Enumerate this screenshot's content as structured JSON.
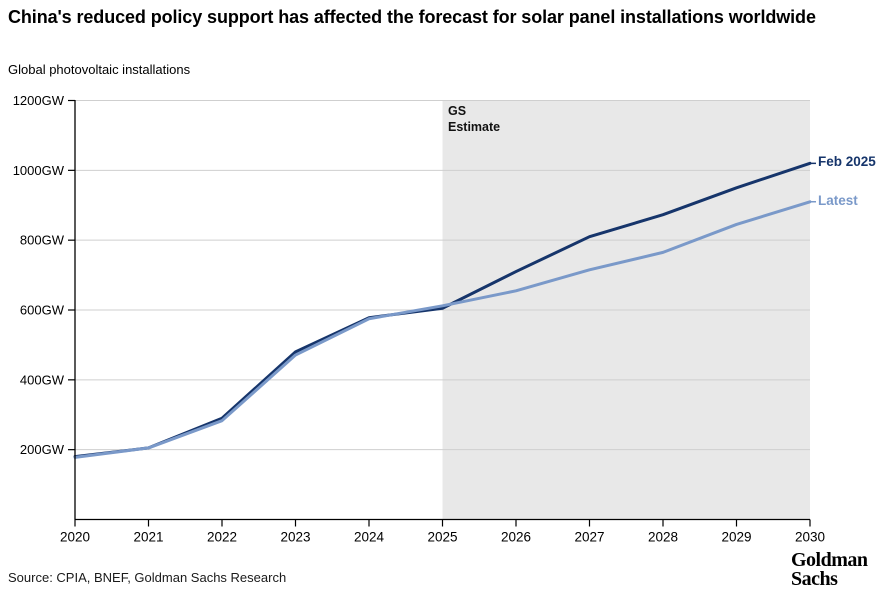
{
  "header": {
    "title": "China's reduced policy support has affected the forecast for solar panel installations worldwide",
    "subtitle": "Global photovoltaic installations"
  },
  "chart_data": {
    "type": "line",
    "title": "Global photovoltaic installations",
    "xlabel": "",
    "ylabel": "",
    "x": [
      2020,
      2021,
      2022,
      2023,
      2024,
      2025,
      2026,
      2027,
      2028,
      2029,
      2030
    ],
    "x_tick_labels": [
      "2020",
      "2021",
      "2022",
      "2023",
      "2024",
      "2025",
      "2026",
      "2027",
      "2028",
      "2029",
      "2030"
    ],
    "series": [
      {
        "name": "Feb 2025",
        "color": "#16356b",
        "values": [
          180,
          205,
          290,
          480,
          578,
          605,
          710,
          810,
          873,
          950,
          1020
        ]
      },
      {
        "name": "Latest",
        "color": "#7a99c9",
        "values": [
          178,
          205,
          283,
          471,
          575,
          612,
          655,
          715,
          765,
          845,
          910
        ]
      }
    ],
    "ylim": [
      0,
      1200
    ],
    "xlim": [
      2020,
      2030
    ],
    "y_ticks": [
      200,
      400,
      600,
      800,
      1000,
      1200
    ],
    "y_tick_suffix": "GW",
    "grid": true,
    "legend_position": "line-end-right",
    "colors": {
      "axis": "#000000",
      "gridline": "#cfcfcf",
      "tick_text": "#000000",
      "estimate_fill": "#e8e8e8"
    },
    "estimate_region": {
      "label": "GS\nEstimate",
      "x_start": 2025,
      "x_end": 2030
    }
  },
  "footer": {
    "source": "Source: CPIA, BNEF, Goldman Sachs Research",
    "logo_line1": "Goldman",
    "logo_line2": "Sachs"
  }
}
